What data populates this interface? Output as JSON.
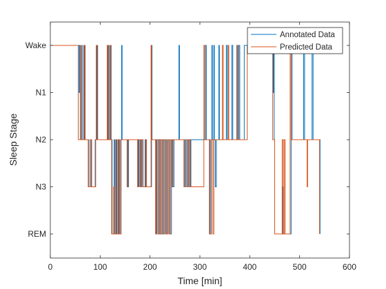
{
  "chart_data": {
    "type": "line",
    "title": "",
    "xlabel": "Time [min]",
    "ylabel": "Sleep Stage",
    "xlim": [
      0,
      600
    ],
    "xticks": [
      0,
      100,
      200,
      300,
      400,
      500,
      600
    ],
    "ytick_labels": [
      "Wake",
      "N1",
      "N2",
      "N3",
      "REM"
    ],
    "y_levels": {
      "Wake": 4,
      "N1": 3,
      "N2": 2,
      "N3": 1,
      "REM": 0
    },
    "grid": false,
    "legend_position": "top-right",
    "series": [
      {
        "name": "Annotated Data",
        "color": "#0072BD",
        "points": [
          [
            0,
            4
          ],
          [
            58,
            4
          ],
          [
            58,
            3
          ],
          [
            59,
            3
          ],
          [
            59,
            4
          ],
          [
            60,
            4
          ],
          [
            60,
            2
          ],
          [
            63,
            2
          ],
          [
            63,
            4
          ],
          [
            64,
            4
          ],
          [
            64,
            2
          ],
          [
            67,
            2
          ],
          [
            67,
            4
          ],
          [
            69,
            4
          ],
          [
            69,
            2
          ],
          [
            77,
            2
          ],
          [
            77,
            1
          ],
          [
            80,
            1
          ],
          [
            80,
            2
          ],
          [
            82,
            2
          ],
          [
            82,
            1
          ],
          [
            90,
            1
          ],
          [
            90,
            2
          ],
          [
            93,
            2
          ],
          [
            93,
            4
          ],
          [
            95,
            4
          ],
          [
            95,
            2
          ],
          [
            115,
            2
          ],
          [
            115,
            4
          ],
          [
            117,
            4
          ],
          [
            117,
            2
          ],
          [
            120,
            2
          ],
          [
            120,
            4
          ],
          [
            122,
            4
          ],
          [
            122,
            2
          ],
          [
            124,
            2
          ],
          [
            124,
            0
          ],
          [
            128,
            0
          ],
          [
            128,
            2
          ],
          [
            129,
            2
          ],
          [
            129,
            0
          ],
          [
            132,
            0
          ],
          [
            132,
            2
          ],
          [
            133,
            2
          ],
          [
            133,
            0
          ],
          [
            136,
            0
          ],
          [
            136,
            2
          ],
          [
            138,
            2
          ],
          [
            138,
            0
          ],
          [
            141,
            0
          ],
          [
            141,
            2
          ],
          [
            143,
            2
          ],
          [
            143,
            4
          ],
          [
            144,
            4
          ],
          [
            144,
            2
          ],
          [
            154,
            2
          ],
          [
            154,
            1
          ],
          [
            157,
            1
          ],
          [
            157,
            2
          ],
          [
            176,
            2
          ],
          [
            176,
            1
          ],
          [
            177,
            1
          ],
          [
            177,
            2
          ],
          [
            180,
            2
          ],
          [
            180,
            1
          ],
          [
            183,
            1
          ],
          [
            183,
            2
          ],
          [
            186,
            2
          ],
          [
            186,
            1
          ],
          [
            190,
            1
          ],
          [
            190,
            2
          ],
          [
            192,
            2
          ],
          [
            192,
            1
          ],
          [
            203,
            1
          ],
          [
            203,
            4
          ],
          [
            204,
            4
          ],
          [
            204,
            2
          ],
          [
            212,
            2
          ],
          [
            212,
            0
          ],
          [
            214,
            0
          ],
          [
            214,
            2
          ],
          [
            218,
            2
          ],
          [
            218,
            0
          ],
          [
            221,
            0
          ],
          [
            221,
            2
          ],
          [
            225,
            2
          ],
          [
            225,
            0
          ],
          [
            228,
            0
          ],
          [
            228,
            2
          ],
          [
            232,
            2
          ],
          [
            232,
            0
          ],
          [
            235,
            0
          ],
          [
            235,
            2
          ],
          [
            239,
            2
          ],
          [
            239,
            0
          ],
          [
            243,
            0
          ],
          [
            243,
            2
          ],
          [
            246,
            2
          ],
          [
            246,
            1
          ],
          [
            248,
            1
          ],
          [
            248,
            2
          ],
          [
            258,
            2
          ],
          [
            258,
            4
          ],
          [
            259,
            4
          ],
          [
            259,
            2
          ],
          [
            269,
            2
          ],
          [
            269,
            1
          ],
          [
            271,
            1
          ],
          [
            271,
            2
          ],
          [
            274,
            2
          ],
          [
            274,
            1
          ],
          [
            277,
            1
          ],
          [
            277,
            2
          ],
          [
            280,
            2
          ],
          [
            280,
            1
          ],
          [
            282,
            1
          ],
          [
            282,
            2
          ],
          [
            310,
            2
          ],
          [
            310,
            4
          ],
          [
            313,
            4
          ],
          [
            313,
            2
          ],
          [
            320,
            2
          ],
          [
            320,
            0
          ],
          [
            323,
            0
          ],
          [
            323,
            2
          ],
          [
            324,
            2
          ],
          [
            324,
            4
          ],
          [
            325,
            4
          ],
          [
            325,
            2
          ],
          [
            328,
            2
          ],
          [
            328,
            4
          ],
          [
            329,
            4
          ],
          [
            329,
            2
          ],
          [
            331,
            2
          ],
          [
            331,
            1
          ],
          [
            333,
            1
          ],
          [
            333,
            2
          ],
          [
            338,
            2
          ],
          [
            338,
            4
          ],
          [
            339,
            4
          ],
          [
            339,
            2
          ],
          [
            353,
            2
          ],
          [
            353,
            4
          ],
          [
            355,
            4
          ],
          [
            355,
            2
          ],
          [
            364,
            2
          ],
          [
            364,
            4
          ],
          [
            366,
            4
          ],
          [
            366,
            2
          ],
          [
            374,
            2
          ],
          [
            374,
            4
          ],
          [
            375,
            4
          ],
          [
            375,
            2
          ],
          [
            378,
            2
          ],
          [
            378,
            4
          ],
          [
            380,
            4
          ],
          [
            380,
            2
          ],
          [
            389,
            2
          ],
          [
            389,
            4
          ],
          [
            447,
            4
          ],
          [
            447,
            3
          ],
          [
            448,
            3
          ],
          [
            448,
            4
          ],
          [
            449,
            4
          ],
          [
            449,
            2
          ],
          [
            450,
            2
          ],
          [
            450,
            0
          ],
          [
            466,
            0
          ],
          [
            466,
            1
          ],
          [
            467,
            1
          ],
          [
            467,
            0
          ],
          [
            483,
            0
          ],
          [
            483,
            4
          ],
          [
            485,
            4
          ],
          [
            485,
            2
          ],
          [
            508,
            2
          ],
          [
            508,
            4
          ],
          [
            510,
            4
          ],
          [
            510,
            2
          ],
          [
            525,
            2
          ],
          [
            525,
            4
          ],
          [
            527,
            4
          ],
          [
            527,
            2
          ],
          [
            541,
            2
          ],
          [
            541,
            0
          ]
        ]
      },
      {
        "name": "Predicted Data",
        "color": "#D95319",
        "points": [
          [
            0,
            4
          ],
          [
            56,
            4
          ],
          [
            56,
            2
          ],
          [
            62,
            2
          ],
          [
            62,
            4
          ],
          [
            63,
            4
          ],
          [
            63,
            2
          ],
          [
            68,
            2
          ],
          [
            68,
            4
          ],
          [
            70,
            4
          ],
          [
            70,
            2
          ],
          [
            76,
            2
          ],
          [
            76,
            1
          ],
          [
            80,
            1
          ],
          [
            80,
            2
          ],
          [
            83,
            2
          ],
          [
            83,
            1
          ],
          [
            91,
            1
          ],
          [
            91,
            2
          ],
          [
            92,
            2
          ],
          [
            92,
            4
          ],
          [
            94,
            4
          ],
          [
            94,
            2
          ],
          [
            114,
            2
          ],
          [
            114,
            4
          ],
          [
            116,
            4
          ],
          [
            116,
            2
          ],
          [
            119,
            2
          ],
          [
            119,
            4
          ],
          [
            121,
            4
          ],
          [
            121,
            2
          ],
          [
            123,
            2
          ],
          [
            123,
            0
          ],
          [
            127,
            0
          ],
          [
            127,
            1
          ],
          [
            128,
            1
          ],
          [
            128,
            0
          ],
          [
            131,
            0
          ],
          [
            131,
            2
          ],
          [
            134,
            2
          ],
          [
            134,
            0
          ],
          [
            137,
            0
          ],
          [
            137,
            2
          ],
          [
            139,
            2
          ],
          [
            139,
            0
          ],
          [
            142,
            0
          ],
          [
            142,
            2
          ],
          [
            155,
            2
          ],
          [
            155,
            1
          ],
          [
            156,
            1
          ],
          [
            156,
            2
          ],
          [
            175,
            2
          ],
          [
            175,
            1
          ],
          [
            178,
            1
          ],
          [
            178,
            2
          ],
          [
            181,
            2
          ],
          [
            181,
            1
          ],
          [
            182,
            1
          ],
          [
            182,
            2
          ],
          [
            185,
            2
          ],
          [
            185,
            1
          ],
          [
            191,
            1
          ],
          [
            191,
            2
          ],
          [
            193,
            2
          ],
          [
            193,
            1
          ],
          [
            202,
            1
          ],
          [
            202,
            4
          ],
          [
            203,
            4
          ],
          [
            203,
            2
          ],
          [
            211,
            2
          ],
          [
            211,
            0
          ],
          [
            213,
            0
          ],
          [
            213,
            2
          ],
          [
            216,
            2
          ],
          [
            216,
            0
          ],
          [
            219,
            0
          ],
          [
            219,
            2
          ],
          [
            222,
            2
          ],
          [
            222,
            0
          ],
          [
            224,
            0
          ],
          [
            224,
            2
          ],
          [
            227,
            2
          ],
          [
            227,
            0
          ],
          [
            230,
            0
          ],
          [
            230,
            2
          ],
          [
            233,
            2
          ],
          [
            233,
            0
          ],
          [
            236,
            0
          ],
          [
            236,
            2
          ],
          [
            238,
            2
          ],
          [
            238,
            0
          ],
          [
            241,
            0
          ],
          [
            241,
            2
          ],
          [
            244,
            2
          ],
          [
            244,
            1
          ],
          [
            245,
            1
          ],
          [
            245,
            2
          ],
          [
            268,
            2
          ],
          [
            268,
            1
          ],
          [
            272,
            1
          ],
          [
            272,
            2
          ],
          [
            276,
            2
          ],
          [
            276,
            1
          ],
          [
            278,
            1
          ],
          [
            278,
            2
          ],
          [
            281,
            2
          ],
          [
            281,
            1
          ],
          [
            283,
            1
          ],
          [
            283,
            1
          ],
          [
            308,
            1
          ],
          [
            308,
            4
          ],
          [
            311,
            4
          ],
          [
            311,
            2
          ],
          [
            319,
            2
          ],
          [
            319,
            0
          ],
          [
            322,
            0
          ],
          [
            322,
            2
          ],
          [
            326,
            2
          ],
          [
            326,
            0
          ],
          [
            328,
            0
          ],
          [
            328,
            2
          ],
          [
            345,
            2
          ],
          [
            345,
            4
          ],
          [
            347,
            4
          ],
          [
            347,
            2
          ],
          [
            357,
            2
          ],
          [
            357,
            4
          ],
          [
            358,
            4
          ],
          [
            358,
            2
          ],
          [
            375,
            2
          ],
          [
            375,
            4
          ],
          [
            377,
            4
          ],
          [
            377,
            2
          ],
          [
            395,
            2
          ],
          [
            395,
            4
          ],
          [
            446,
            4
          ],
          [
            446,
            2
          ],
          [
            448,
            2
          ],
          [
            448,
            2
          ],
          [
            450,
            2
          ],
          [
            450,
            0
          ],
          [
            465,
            0
          ],
          [
            465,
            2
          ],
          [
            467,
            2
          ],
          [
            467,
            0
          ],
          [
            469,
            0
          ],
          [
            469,
            2
          ],
          [
            471,
            2
          ],
          [
            471,
            0
          ],
          [
            481,
            0
          ],
          [
            481,
            4
          ],
          [
            483,
            4
          ],
          [
            483,
            2
          ],
          [
            515,
            2
          ],
          [
            515,
            1
          ],
          [
            516,
            1
          ],
          [
            516,
            2
          ],
          [
            540,
            2
          ],
          [
            540,
            0
          ]
        ]
      }
    ]
  }
}
